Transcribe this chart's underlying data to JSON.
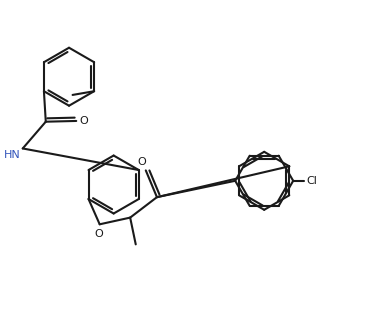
{
  "bg_color": "#ffffff",
  "line_color": "#1a1a1a",
  "hn_color": "#3355bb",
  "lw": 1.5,
  "dbo": 0.08,
  "figsize": [
    3.72,
    3.17
  ],
  "dpi": 100,
  "xlim": [
    0,
    10
  ],
  "ylim": [
    0,
    8.5
  ]
}
